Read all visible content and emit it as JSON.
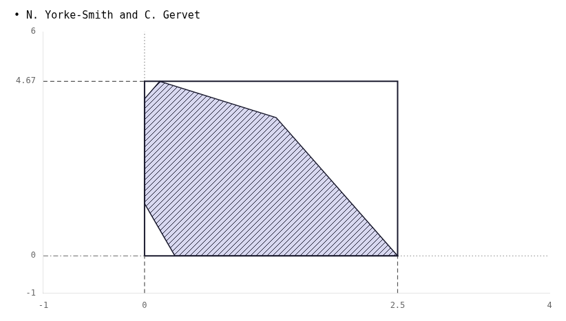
{
  "chart_data": {
    "type": "line",
    "title": "• N. Yorke-Smith and C. Gervet",
    "grid": false,
    "xlim": [
      -1,
      4
    ],
    "ylim": [
      -1,
      6
    ],
    "xticks": [
      -1,
      0,
      2.5,
      4
    ],
    "yticks": [
      -1,
      0,
      4.67,
      6
    ],
    "series": [
      {
        "type": "line",
        "color": "#555555",
        "line_style": "dashed",
        "x": [
          -1,
          0
        ],
        "values": [
          4.67,
          4.67
        ]
      },
      {
        "type": "line",
        "color": "#666666",
        "line_style": "dashdot",
        "x": [
          -1,
          0
        ],
        "values": [
          0,
          0
        ]
      },
      {
        "type": "line",
        "color": "#888888",
        "line_style": "dotted",
        "x": [
          2.5,
          4
        ],
        "values": [
          0,
          0
        ]
      },
      {
        "type": "line",
        "color": "#888888",
        "line_style": "dotted",
        "x": [
          0,
          0
        ],
        "values": [
          4.67,
          6
        ]
      },
      {
        "type": "line",
        "color": "#555555",
        "line_style": "dashed",
        "x": [
          0,
          0
        ],
        "values": [
          -1,
          0
        ]
      },
      {
        "type": "line",
        "color": "#555555",
        "line_style": "dashed",
        "x": [
          2.5,
          2.5
        ],
        "values": [
          -1,
          0
        ]
      },
      {
        "type": "area",
        "color": "#d8d8f0",
        "edge_color": "#1a1a2e",
        "line_style": "solid",
        "x": [
          0.0,
          0.15,
          1.3,
          2.5,
          0.3,
          0.0
        ],
        "values": [
          4.2,
          4.67,
          3.7,
          0.0,
          0.0,
          1.4
        ]
      },
      {
        "type": "line",
        "color": "#1a1a2e",
        "line_style": "solid",
        "x": [
          0.0,
          2.5,
          2.5,
          0.0,
          0.0
        ],
        "values": [
          0.0,
          0.0,
          4.67,
          4.67,
          0.0
        ]
      }
    ]
  }
}
